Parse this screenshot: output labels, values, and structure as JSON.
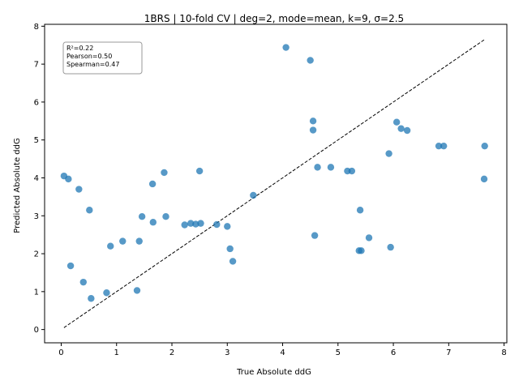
{
  "chart_data": {
    "type": "scatter",
    "title": "1BRS | 10-fold CV | deg=2, mode=mean, k=9, σ=2.5",
    "xlabel": "True Absolute ddG",
    "ylabel": "Predicted Absolute ddG",
    "xlim": [
      -0.3,
      8.05
    ],
    "ylim": [
      -0.35,
      8.05
    ],
    "xticks": [
      0,
      1,
      2,
      3,
      4,
      5,
      6,
      7,
      8
    ],
    "yticks": [
      0,
      1,
      2,
      3,
      4,
      5,
      6,
      7,
      8
    ],
    "point_color": "#1f77b4",
    "reference_line": {
      "style": "dashed",
      "color": "#000000",
      "from": [
        0.05,
        0.05
      ],
      "to": [
        7.65,
        7.65
      ]
    },
    "stats_box": {
      "placement": "top-left",
      "lines": [
        "R²=0.22",
        "Pearson=0.50",
        "Spearman=0.47"
      ]
    },
    "points": [
      {
        "x": 0.05,
        "y": 4.05
      },
      {
        "x": 0.13,
        "y": 3.97
      },
      {
        "x": 0.32,
        "y": 3.7
      },
      {
        "x": 0.17,
        "y": 1.68
      },
      {
        "x": 0.4,
        "y": 1.25
      },
      {
        "x": 0.51,
        "y": 3.15
      },
      {
        "x": 0.54,
        "y": 0.82
      },
      {
        "x": 0.82,
        "y": 0.97
      },
      {
        "x": 0.89,
        "y": 2.2
      },
      {
        "x": 1.11,
        "y": 2.33
      },
      {
        "x": 1.37,
        "y": 1.03
      },
      {
        "x": 1.41,
        "y": 2.33
      },
      {
        "x": 1.46,
        "y": 2.98
      },
      {
        "x": 1.65,
        "y": 3.84
      },
      {
        "x": 1.66,
        "y": 2.83
      },
      {
        "x": 1.86,
        "y": 4.14
      },
      {
        "x": 1.89,
        "y": 2.98
      },
      {
        "x": 2.23,
        "y": 2.76
      },
      {
        "x": 2.34,
        "y": 2.8
      },
      {
        "x": 2.43,
        "y": 2.78
      },
      {
        "x": 2.52,
        "y": 2.8
      },
      {
        "x": 2.5,
        "y": 4.18
      },
      {
        "x": 2.81,
        "y": 2.77
      },
      {
        "x": 3.0,
        "y": 2.72
      },
      {
        "x": 3.05,
        "y": 2.13
      },
      {
        "x": 3.1,
        "y": 1.8
      },
      {
        "x": 3.47,
        "y": 3.54
      },
      {
        "x": 4.06,
        "y": 7.44
      },
      {
        "x": 4.5,
        "y": 7.1
      },
      {
        "x": 4.55,
        "y": 5.5
      },
      {
        "x": 4.55,
        "y": 5.26
      },
      {
        "x": 4.58,
        "y": 2.48
      },
      {
        "x": 4.63,
        "y": 4.28
      },
      {
        "x": 4.87,
        "y": 4.28
      },
      {
        "x": 5.17,
        "y": 4.18
      },
      {
        "x": 5.25,
        "y": 4.18
      },
      {
        "x": 5.4,
        "y": 3.15
      },
      {
        "x": 5.38,
        "y": 2.08
      },
      {
        "x": 5.42,
        "y": 2.08
      },
      {
        "x": 5.56,
        "y": 2.42
      },
      {
        "x": 5.92,
        "y": 4.64
      },
      {
        "x": 5.95,
        "y": 2.17
      },
      {
        "x": 6.06,
        "y": 5.47
      },
      {
        "x": 6.14,
        "y": 5.3
      },
      {
        "x": 6.25,
        "y": 5.25
      },
      {
        "x": 6.82,
        "y": 4.84
      },
      {
        "x": 6.91,
        "y": 4.84
      },
      {
        "x": 7.65,
        "y": 4.84
      },
      {
        "x": 7.64,
        "y": 3.97
      }
    ]
  }
}
